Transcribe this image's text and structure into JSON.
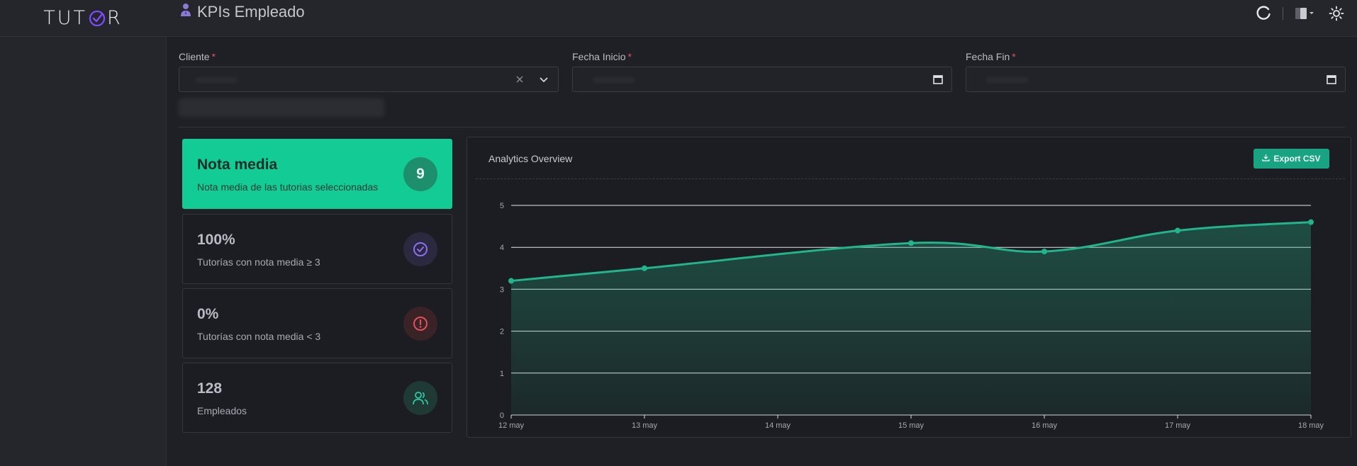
{
  "app": {
    "logo_text_left": "TUT",
    "logo_text_right": "R",
    "accent_color": "#7c4dff"
  },
  "header": {
    "title": "KPIs Empleado",
    "title_icon": "user-icon",
    "actions": [
      "refresh-icon",
      "device-toggle-icon",
      "theme-toggle-icon"
    ]
  },
  "filters": {
    "cliente": {
      "label": "Cliente",
      "required_mark": "*",
      "value": ""
    },
    "fecha_inicio": {
      "label": "Fecha Inicio",
      "required_mark": "*",
      "value": ""
    },
    "fecha_fin": {
      "label": "Fecha Fin",
      "required_mark": "*",
      "value": ""
    }
  },
  "kpis": [
    {
      "value": "Nota media",
      "label": "Nota media de las tutorias seleccionadas",
      "badge": "9",
      "icon": "score-badge",
      "color": "#13cc95"
    },
    {
      "value": "100%",
      "label": "Tutorías con nota media ≥ 3",
      "icon": "check-circle-icon",
      "color": "#8f6cf0"
    },
    {
      "value": "0%",
      "label": "Tutorías con nota media < 3",
      "icon": "alert-circle-icon",
      "color": "#e0505a"
    },
    {
      "value": "128",
      "label": "Empleados",
      "icon": "users-icon",
      "color": "#2fc8a4"
    }
  ],
  "chart": {
    "title": "Analytics Overview",
    "export_label": "Export CSV"
  },
  "chart_data": {
    "type": "area",
    "x": [
      "12 may",
      "13 may",
      "14 may",
      "15 may",
      "16 may",
      "17 may",
      "18 may"
    ],
    "series": [
      {
        "values": [
          3.2,
          3.5,
          null,
          4.1,
          3.9,
          4.4,
          4.6
        ]
      }
    ],
    "yticks": [
      "0",
      "1",
      "2",
      "3",
      "4",
      "5"
    ],
    "ylim": [
      0,
      5
    ],
    "grid": true,
    "color": "#22b48c"
  }
}
